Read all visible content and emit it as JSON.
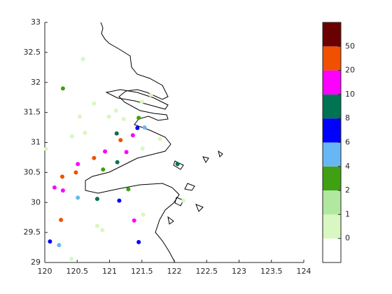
{
  "chart_data": {
    "type": "scatter",
    "x": [
      120.59,
      120.28,
      120.76,
      121.1,
      121.64,
      121.5,
      120.54,
      120.99,
      121.22,
      121.45,
      120.62,
      120.42,
      121.11,
      121.43,
      121.54,
      121.36,
      121.17,
      121.78,
      121.51,
      120.02,
      120.93,
      121.26,
      120.76,
      120.51,
      121.12,
      120.9,
      122.05,
      120.27,
      120.48,
      120.15,
      120.28,
      121.29,
      120.51,
      120.81,
      121.15,
      122.14,
      121.52,
      120.25,
      121.38,
      120.81,
      120.89,
      120.08,
      120.22,
      121.45,
      120.41
    ],
    "y": [
      32.39,
      31.9,
      31.65,
      31.53,
      31.79,
      31.68,
      31.43,
      31.43,
      31.39,
      31.41,
      31.16,
      31.1,
      31.15,
      31.24,
      31.25,
      31.12,
      31.04,
      31.06,
      30.9,
      30.89,
      30.85,
      30.84,
      30.74,
      30.64,
      30.67,
      30.55,
      30.64,
      30.43,
      30.5,
      30.25,
      30.2,
      30.22,
      30.08,
      30.06,
      30.03,
      30.03,
      29.8,
      29.71,
      29.7,
      29.61,
      29.54,
      29.35,
      29.29,
      29.34,
      29.06
    ],
    "point_colors": [
      "#d9f7c0",
      "#3fa012",
      "#d9f7c0",
      "#d9f7c0",
      "#d9f7c0",
      "#d9f7c0",
      "#d9f7c0",
      "#d9f7c0",
      "#d9f7c0",
      "#3fa012",
      "#d9f7c0",
      "#d9f7c0",
      "#007352",
      "#0000ff",
      "#67b7f5",
      "#ff00ff",
      "#f05000",
      "#d9f7c0",
      "#d9f7c0",
      "#d9f7c0",
      "#ff00ff",
      "#ff00ff",
      "#f05000",
      "#ff00ff",
      "#007352",
      "#3fa012",
      "#007352",
      "#f05000",
      "#f05000",
      "#ff00ff",
      "#ff00ff",
      "#3fa012",
      "#67b7f5",
      "#007352",
      "#0000ff",
      "#d9f7c0",
      "#d9f7c0",
      "#f05000",
      "#ff00ff",
      "#d9f7c0",
      "#d9f7c0",
      "#0000ff",
      "#67b7f5",
      "#0000ff",
      "#d9f7c0"
    ],
    "xlim": [
      120,
      124
    ],
    "xticks": [
      120,
      120.5,
      121,
      121.5,
      122,
      122.5,
      123,
      123.5,
      124
    ],
    "ylim": [
      29,
      33
    ],
    "yticks": [
      29,
      29.5,
      30,
      30.5,
      31,
      31.5,
      32,
      32.5,
      33
    ],
    "colorbar": {
      "colors": [
        "#ffffff",
        "#d9f7c0",
        "#b0e8a0",
        "#3fa012",
        "#67b7f5",
        "#0000ff",
        "#007352",
        "#ff00ff",
        "#f05000",
        "#6b0000"
      ],
      "clim": [
        0,
        10
      ],
      "ticks": [
        {
          "value": 1,
          "label": "0"
        },
        {
          "value": 2,
          "label": "1"
        },
        {
          "value": 3,
          "label": "2"
        },
        {
          "value": 4,
          "label": "4"
        },
        {
          "value": 5,
          "label": "6"
        },
        {
          "value": 6,
          "label": "8"
        },
        {
          "value": 7,
          "label": "10"
        },
        {
          "value": 8,
          "label": "20"
        },
        {
          "value": 9,
          "label": "50"
        }
      ]
    }
  }
}
